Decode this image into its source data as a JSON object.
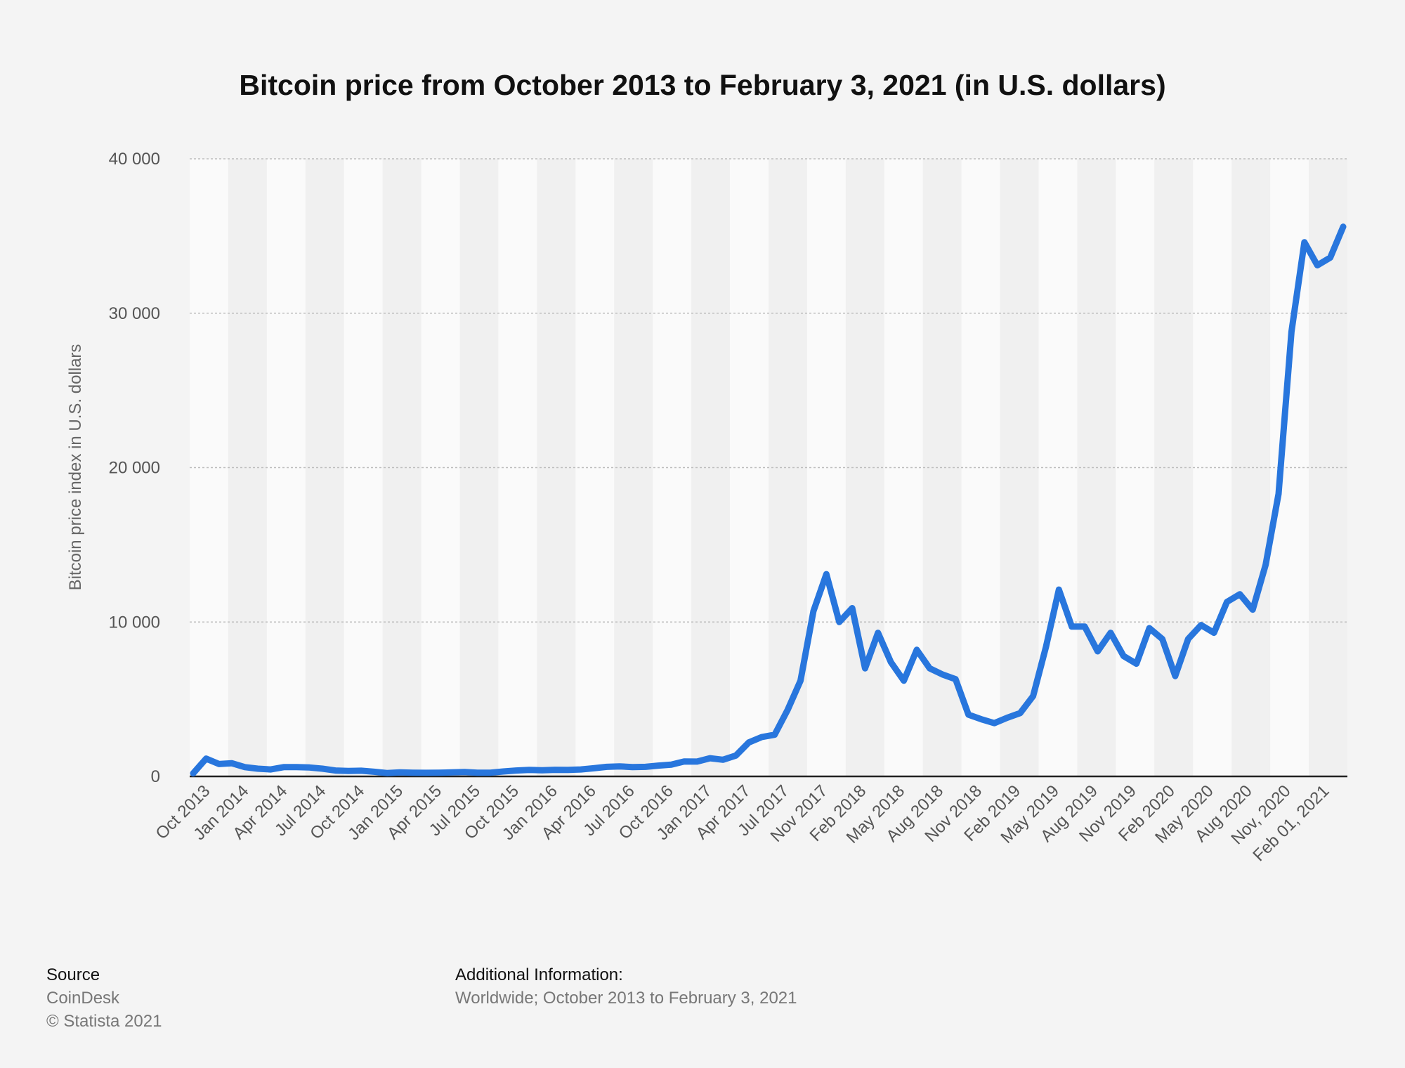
{
  "chart_data": {
    "type": "line",
    "title": "Bitcoin price from October 2013 to February 3, 2021 (in U.S. dollars)",
    "ylabel": "Bitcoin price index in U.S. dollars",
    "xlabel": "",
    "ylim": [
      0,
      40000
    ],
    "y_ticks": [
      0,
      10000,
      20000,
      30000,
      40000
    ],
    "y_tick_labels": [
      "0",
      "10 000",
      "20 000",
      "30 000",
      "40 000"
    ],
    "x_tick_labels": [
      "Oct 2013",
      "Jan 2014",
      "Apr 2014",
      "Jul 2014",
      "Oct 2014",
      "Jan 2015",
      "Apr 2015",
      "Jul 2015",
      "Oct 2015",
      "Jan 2016",
      "Apr 2016",
      "Jul 2016",
      "Oct 2016",
      "Jan 2017",
      "Apr 2017",
      "Jul 2017",
      "Nov 2017",
      "Feb 2018",
      "May 2018",
      "Aug 2018",
      "Nov 2018",
      "Feb 2019",
      "May 2019",
      "Aug 2019",
      "Nov 2019",
      "Feb 2020",
      "May 2020",
      "Aug 2020",
      "Nov, 2020",
      "Feb 01, 2021"
    ],
    "grid": true,
    "line_color": "#2876dd",
    "values": [
      200,
      1150,
      800,
      850,
      600,
      500,
      450,
      600,
      600,
      580,
      500,
      380,
      350,
      370,
      300,
      220,
      260,
      240,
      230,
      240,
      260,
      280,
      240,
      240,
      320,
      380,
      420,
      400,
      430,
      420,
      450,
      530,
      620,
      650,
      600,
      620,
      700,
      760,
      970,
      960,
      1180,
      1080,
      1350,
      2200,
      2550,
      2700,
      4300,
      6200,
      10700,
      13100,
      10000,
      10900,
      7000,
      9300,
      7400,
      6200,
      8200,
      7000,
      6600,
      6300,
      4000,
      3700,
      3450,
      3800,
      4100,
      5200,
      8400,
      12100,
      9700,
      9700,
      8100,
      9300,
      7800,
      7300,
      9600,
      8900,
      6500,
      8900,
      9800,
      9300,
      11300,
      11800,
      10800,
      13700,
      18300,
      28800,
      34600,
      33100,
      33600,
      35600
    ]
  },
  "footer": {
    "source_heading": "Source",
    "source_name": "CoinDesk",
    "copyright": "© Statista 2021",
    "additional_heading": "Additional Information:",
    "additional_text": "Worldwide; October 2013 to February 3, 2021"
  }
}
